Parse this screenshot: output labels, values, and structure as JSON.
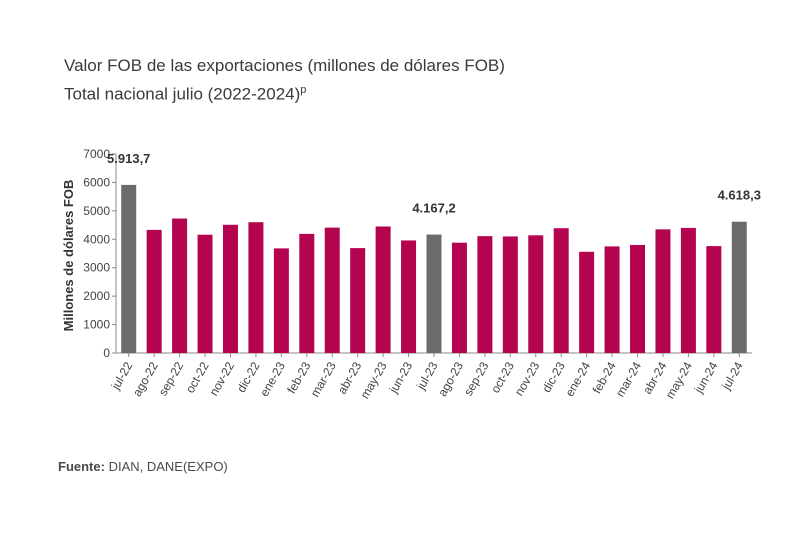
{
  "title": "Valor FOB de las exportaciones (millones de dólares FOB)",
  "subtitle": "Total nacional julio (2022-2024)",
  "subtitle_sup": "p",
  "source_label": "Fuente:",
  "source_text": "DIAN, DANE(EXPO)",
  "colors": {
    "highlight": "#6b6b6b",
    "regular": "#b5044f",
    "axis": "#888888"
  },
  "chart_data": {
    "type": "bar",
    "ylabel": "Millones de dólares FOB",
    "xlabel": "",
    "ylim": [
      0,
      7000
    ],
    "yticks": [
      0,
      1000,
      2000,
      3000,
      4000,
      5000,
      6000,
      7000
    ],
    "grid": false,
    "categories": [
      "jul-22",
      "ago-22",
      "sep-22",
      "oct-22",
      "nov-22",
      "dic-22",
      "ene-23",
      "feb-23",
      "mar-23",
      "abr-23",
      "may-23",
      "jun-23",
      "jul-23",
      "ago-23",
      "sep-23",
      "oct-23",
      "nov-23",
      "dic-23",
      "ene-24",
      "feb-24",
      "mar-24",
      "abr-24",
      "may-24",
      "jun-24",
      "jul-24"
    ],
    "values": [
      5913.7,
      4330,
      4730,
      4160,
      4510,
      4600,
      3680,
      4190,
      4410,
      3690,
      4450,
      3960,
      4167.2,
      3880,
      4110,
      4100,
      4140,
      4390,
      3560,
      3750,
      3800,
      4350,
      4400,
      3760,
      4618.3
    ],
    "highlighted": [
      0,
      12,
      24
    ],
    "data_labels": [
      {
        "index": 0,
        "text": "5.913,7"
      },
      {
        "index": 12,
        "text": "4.167,2"
      },
      {
        "index": 24,
        "text": "4.618,3"
      }
    ]
  }
}
